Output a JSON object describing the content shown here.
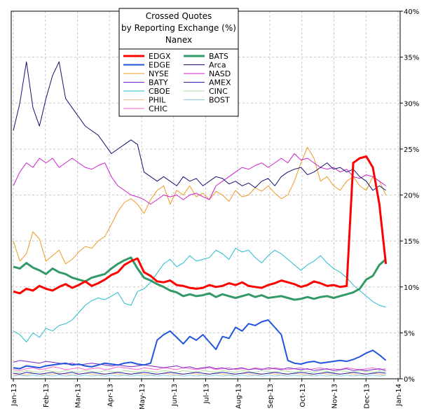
{
  "chart_data": {
    "type": "line",
    "title": [
      "Crossed Quotes",
      "by Reporting Exchange (%)",
      "Nanex"
    ],
    "xlabel": "",
    "ylabel": "",
    "ylim": [
      0,
      40
    ],
    "y_ticks": [
      0,
      5,
      10,
      15,
      20,
      25,
      30,
      35,
      40
    ],
    "y_tick_labels": [
      "0%",
      "5%",
      "10%",
      "15%",
      "20%",
      "25%",
      "30%",
      "35%",
      "40%"
    ],
    "x_ticks": [
      "Jan-13",
      "Feb-13",
      "Mar-13",
      "Apr-13",
      "May-13",
      "Jun-13",
      "Jul-13",
      "Aug-13",
      "Sep-13",
      "Oct-13",
      "Nov-13",
      "Dec-13",
      "Jan-14"
    ],
    "grid": true,
    "legend_position": "top-center",
    "series": [
      {
        "name": "EDGX",
        "color": "#ff0000",
        "width": 3,
        "values": [
          9.5,
          9.3,
          9.8,
          9.6,
          10.1,
          9.8,
          9.6,
          10.0,
          10.3,
          9.9,
          10.2,
          10.6,
          10.1,
          10.4,
          10.8,
          11.3,
          11.6,
          12.4,
          12.8,
          13.1,
          11.6,
          11.2,
          10.6,
          10.5,
          10.7,
          10.2,
          10.1,
          9.9,
          9.8,
          9.9,
          10.2,
          10.0,
          10.1,
          10.4,
          10.2,
          10.5,
          10.1,
          10.0,
          9.9,
          10.2,
          10.4,
          10.7,
          10.5,
          10.3,
          10.0,
          10.2,
          10.6,
          10.4,
          10.1,
          10.2,
          10.0,
          10.1,
          23.5,
          24.0,
          24.2,
          23.0,
          19.0,
          12.5
        ]
      },
      {
        "name": "EDGE",
        "color": "#2255dd",
        "width": 2,
        "values": [
          1.2,
          1.1,
          1.4,
          1.3,
          1.2,
          1.4,
          1.5,
          1.6,
          1.7,
          1.5,
          1.6,
          1.4,
          1.3,
          1.5,
          1.7,
          1.6,
          1.5,
          1.7,
          1.8,
          1.6,
          1.5,
          1.7,
          4.2,
          4.8,
          5.2,
          4.5,
          3.8,
          4.6,
          4.2,
          4.8,
          4.0,
          3.2,
          4.6,
          4.4,
          5.6,
          5.2,
          6.0,
          5.8,
          6.2,
          6.4,
          5.6,
          4.8,
          2.0,
          1.7,
          1.6,
          1.8,
          1.9,
          1.7,
          1.8,
          1.9,
          2.0,
          1.9,
          2.1,
          2.4,
          2.8,
          3.1,
          2.6,
          2.0
        ]
      },
      {
        "name": "NYSE",
        "color": "#ee9922",
        "width": 1,
        "values": [
          15.0,
          12.8,
          13.6,
          16.0,
          15.2,
          12.8,
          13.4,
          14.0,
          12.5,
          13.0,
          13.8,
          14.4,
          14.2,
          15.0,
          15.5,
          16.8,
          18.2,
          19.2,
          19.6,
          19.0,
          18.0,
          19.5,
          20.5,
          21.0,
          19.0,
          20.5,
          20.0,
          21.0,
          19.8,
          20.2,
          19.5,
          20.4,
          20.0,
          19.3,
          20.5,
          19.8,
          20.0,
          20.8,
          20.4,
          21.0,
          20.2,
          19.6,
          20.0,
          21.5,
          23.5,
          25.2,
          24.0,
          21.5,
          22.0,
          21.0,
          20.5,
          21.5,
          22.0,
          21.0,
          20.5,
          22.0,
          21.5,
          20.0
        ]
      },
      {
        "name": "CBOE",
        "color": "#22bbcc",
        "width": 1,
        "values": [
          5.2,
          4.8,
          4.0,
          5.0,
          4.5,
          5.5,
          5.2,
          5.8,
          6.0,
          6.4,
          7.2,
          8.0,
          8.5,
          8.8,
          8.6,
          9.0,
          9.4,
          8.2,
          8.0,
          9.5,
          9.8,
          10.5,
          11.5,
          12.5,
          13.0,
          12.2,
          12.6,
          13.4,
          12.8,
          13.0,
          13.2,
          14.0,
          13.6,
          13.0,
          14.2,
          13.8,
          14.0,
          13.2,
          12.6,
          13.4,
          14.0,
          13.6,
          13.0,
          12.4,
          11.8,
          12.4,
          12.8,
          13.4,
          12.6,
          12.0,
          11.6,
          11.0,
          10.2,
          9.6,
          9.0,
          8.4,
          8.0,
          7.8
        ]
      },
      {
        "name": "BATS",
        "color": "#339966",
        "width": 3,
        "values": [
          12.2,
          12.0,
          12.6,
          12.1,
          11.8,
          11.4,
          12.0,
          11.6,
          11.4,
          11.0,
          10.8,
          10.6,
          11.0,
          11.2,
          11.4,
          12.0,
          12.5,
          12.9,
          13.2,
          12.0,
          11.0,
          10.7,
          10.3,
          10.0,
          9.6,
          9.4,
          9.0,
          9.2,
          9.0,
          9.1,
          9.3,
          8.9,
          9.2,
          9.0,
          8.8,
          9.0,
          9.2,
          8.9,
          9.1,
          8.8,
          8.9,
          9.0,
          8.8,
          8.6,
          8.7,
          8.9,
          8.7,
          8.9,
          9.0,
          8.8,
          9.0,
          9.2,
          9.4,
          9.8,
          10.8,
          11.2,
          12.4,
          13.0
        ]
      },
      {
        "name": "Arca",
        "color": "#101070",
        "width": 1,
        "values": [
          27.0,
          30.0,
          34.5,
          29.5,
          27.5,
          30.5,
          33.0,
          34.5,
          30.5,
          29.5,
          28.5,
          27.5,
          27.0,
          26.5,
          25.5,
          24.5,
          25.0,
          25.5,
          26.0,
          25.5,
          22.5,
          22.0,
          21.5,
          22.0,
          21.5,
          21.0,
          22.0,
          21.5,
          21.8,
          21.0,
          21.5,
          22.0,
          21.8,
          21.2,
          21.5,
          21.0,
          21.3,
          20.8,
          21.5,
          21.8,
          21.0,
          22.0,
          22.5,
          22.8,
          23.0,
          22.2,
          22.5,
          23.0,
          23.5,
          22.8,
          23.0,
          22.5,
          22.8,
          22.0,
          21.5,
          20.5,
          21.0,
          20.5
        ]
      },
      {
        "name": "NASD",
        "color": "#cc22cc",
        "width": 1,
        "values": [
          21.0,
          22.5,
          23.5,
          23.0,
          24.0,
          23.5,
          24.0,
          23.0,
          23.5,
          24.0,
          23.5,
          23.0,
          22.8,
          23.2,
          23.5,
          22.0,
          21.0,
          20.5,
          20.0,
          19.8,
          19.5,
          19.0,
          19.5,
          20.0,
          19.8,
          20.0,
          19.5,
          20.0,
          20.2,
          19.8,
          19.5,
          21.0,
          21.5,
          22.0,
          22.5,
          23.0,
          22.8,
          23.2,
          23.5,
          23.0,
          23.5,
          24.0,
          23.5,
          24.5,
          23.8,
          24.0,
          23.5,
          23.0,
          22.8,
          23.0,
          22.5,
          22.8,
          22.0,
          21.8,
          22.2,
          22.0,
          21.5,
          21.0
        ]
      },
      {
        "name": "CHIC",
        "color": "#ff66cc",
        "width": 1,
        "values": [
          1.0,
          0.9,
          1.1,
          1.2,
          1.0,
          1.1,
          1.3,
          1.2,
          1.0,
          1.1,
          1.2,
          1.0,
          1.1,
          1.2,
          1.0,
          1.1,
          1.3,
          1.2,
          1.1,
          1.0,
          1.2,
          1.1,
          1.0,
          1.2,
          1.1,
          1.0,
          1.2,
          1.1,
          1.0,
          1.1,
          1.2,
          1.0,
          1.1,
          1.2,
          1.0,
          1.1,
          1.0,
          1.2,
          1.1,
          1.0,
          1.2,
          1.1,
          1.0,
          1.1,
          1.2,
          1.0,
          1.1,
          1.2,
          1.0,
          1.1,
          1.0,
          1.2,
          1.1,
          1.0,
          1.1,
          1.2,
          1.0,
          1.1
        ]
      },
      {
        "name": "BATY",
        "color": "#7722cc",
        "width": 1,
        "values": [
          1.8,
          2.0,
          1.9,
          1.8,
          1.7,
          1.9,
          1.8,
          1.7,
          1.6,
          1.7,
          1.5,
          1.6,
          1.7,
          1.6,
          1.5,
          1.4,
          1.5,
          1.4,
          1.3,
          1.4,
          1.5,
          1.4,
          1.3,
          1.2,
          1.3,
          1.4,
          1.2,
          1.3,
          1.1,
          1.2,
          1.3,
          1.1,
          1.2,
          1.0,
          1.1,
          1.2,
          1.0,
          1.1,
          1.0,
          1.2,
          1.1,
          1.0,
          1.2,
          1.1,
          1.0,
          1.1,
          0.9,
          1.0,
          1.1,
          0.9,
          1.0,
          1.1,
          0.9,
          1.0,
          0.9,
          1.0,
          1.1,
          0.9
        ]
      },
      {
        "name": "PHIL",
        "color": "#ffbb88",
        "width": 1,
        "values": [
          0.4,
          0.5,
          0.4,
          0.6,
          0.5,
          0.4,
          0.5,
          0.6,
          0.5,
          0.4,
          0.5,
          0.6,
          0.5,
          0.4,
          0.5,
          0.6,
          0.5,
          0.4,
          0.5,
          0.6,
          0.5,
          0.4,
          0.5,
          0.6,
          0.5,
          0.4,
          0.5,
          0.6,
          0.5,
          0.4,
          0.5,
          0.6,
          0.5,
          0.4,
          0.5,
          0.6,
          0.5,
          0.4,
          0.5,
          0.6,
          0.5,
          0.4,
          0.5,
          0.6,
          0.5,
          0.4,
          0.5,
          0.6,
          0.5,
          0.4,
          0.5,
          0.6,
          0.5,
          0.4,
          0.5,
          0.6,
          0.5,
          0.4
        ]
      },
      {
        "name": "AMEX",
        "color": "#2222aa",
        "width": 1,
        "values": [
          0.6,
          0.5,
          0.7,
          0.6,
          0.5,
          0.6,
          0.7,
          0.5,
          0.6,
          0.7,
          0.5,
          0.6,
          0.7,
          0.6,
          0.5,
          0.6,
          0.7,
          0.6,
          0.5,
          0.6,
          0.7,
          0.6,
          0.5,
          0.6,
          0.7,
          0.6,
          0.5,
          0.6,
          0.7,
          0.6,
          0.5,
          0.6,
          0.7,
          0.6,
          0.5,
          0.6,
          0.7,
          0.6,
          0.5,
          0.6,
          0.7,
          0.6,
          0.5,
          0.6,
          0.7,
          0.6,
          0.5,
          0.6,
          0.7,
          0.6,
          0.5,
          0.6,
          0.7,
          0.6,
          0.5,
          0.6,
          0.7,
          0.6
        ]
      },
      {
        "name": "CINC",
        "color": "#aaddaa",
        "width": 1,
        "values": [
          0.8,
          0.7,
          0.9,
          0.8,
          0.7,
          0.9,
          0.8,
          0.7,
          0.9,
          0.8,
          0.7,
          0.9,
          0.8,
          0.7,
          0.9,
          0.8,
          0.7,
          0.9,
          0.8,
          0.7,
          0.9,
          0.8,
          0.7,
          0.9,
          0.8,
          0.7,
          0.9,
          0.8,
          0.7,
          0.9,
          0.8,
          0.7,
          0.9,
          0.8,
          0.7,
          0.9,
          0.8,
          0.7,
          0.9,
          0.8,
          0.7,
          0.9,
          0.8,
          0.7,
          0.9,
          0.8,
          0.7,
          0.9,
          0.8,
          0.7,
          0.9,
          0.8,
          0.7,
          0.9,
          0.8,
          0.7,
          0.9,
          0.8
        ]
      },
      {
        "name": "BOST",
        "color": "#88ccee",
        "width": 1,
        "values": [
          0.3,
          0.4,
          0.3,
          0.4,
          0.3,
          0.4,
          0.3,
          0.4,
          0.3,
          0.4,
          0.3,
          0.4,
          0.3,
          0.4,
          0.3,
          0.4,
          0.3,
          0.4,
          0.3,
          0.4,
          0.3,
          0.4,
          0.3,
          0.4,
          0.3,
          0.4,
          0.3,
          0.4,
          0.3,
          0.4,
          0.3,
          0.4,
          0.3,
          0.4,
          0.3,
          0.4,
          0.3,
          0.4,
          0.3,
          0.4,
          0.3,
          0.4,
          0.3,
          0.4,
          0.3,
          0.4,
          0.3,
          0.4,
          0.3,
          0.4,
          0.3,
          0.4,
          0.3,
          0.4,
          0.3,
          0.4,
          0.3,
          0.4
        ]
      }
    ],
    "legend_left": [
      "EDGX",
      "EDGE",
      "NYSE",
      "BATY",
      "CBOE",
      "PHIL",
      "CHIC"
    ],
    "legend_right": [
      "BATS",
      "Arca",
      "NASD",
      "AMEX",
      "CINC",
      "BOST"
    ]
  }
}
